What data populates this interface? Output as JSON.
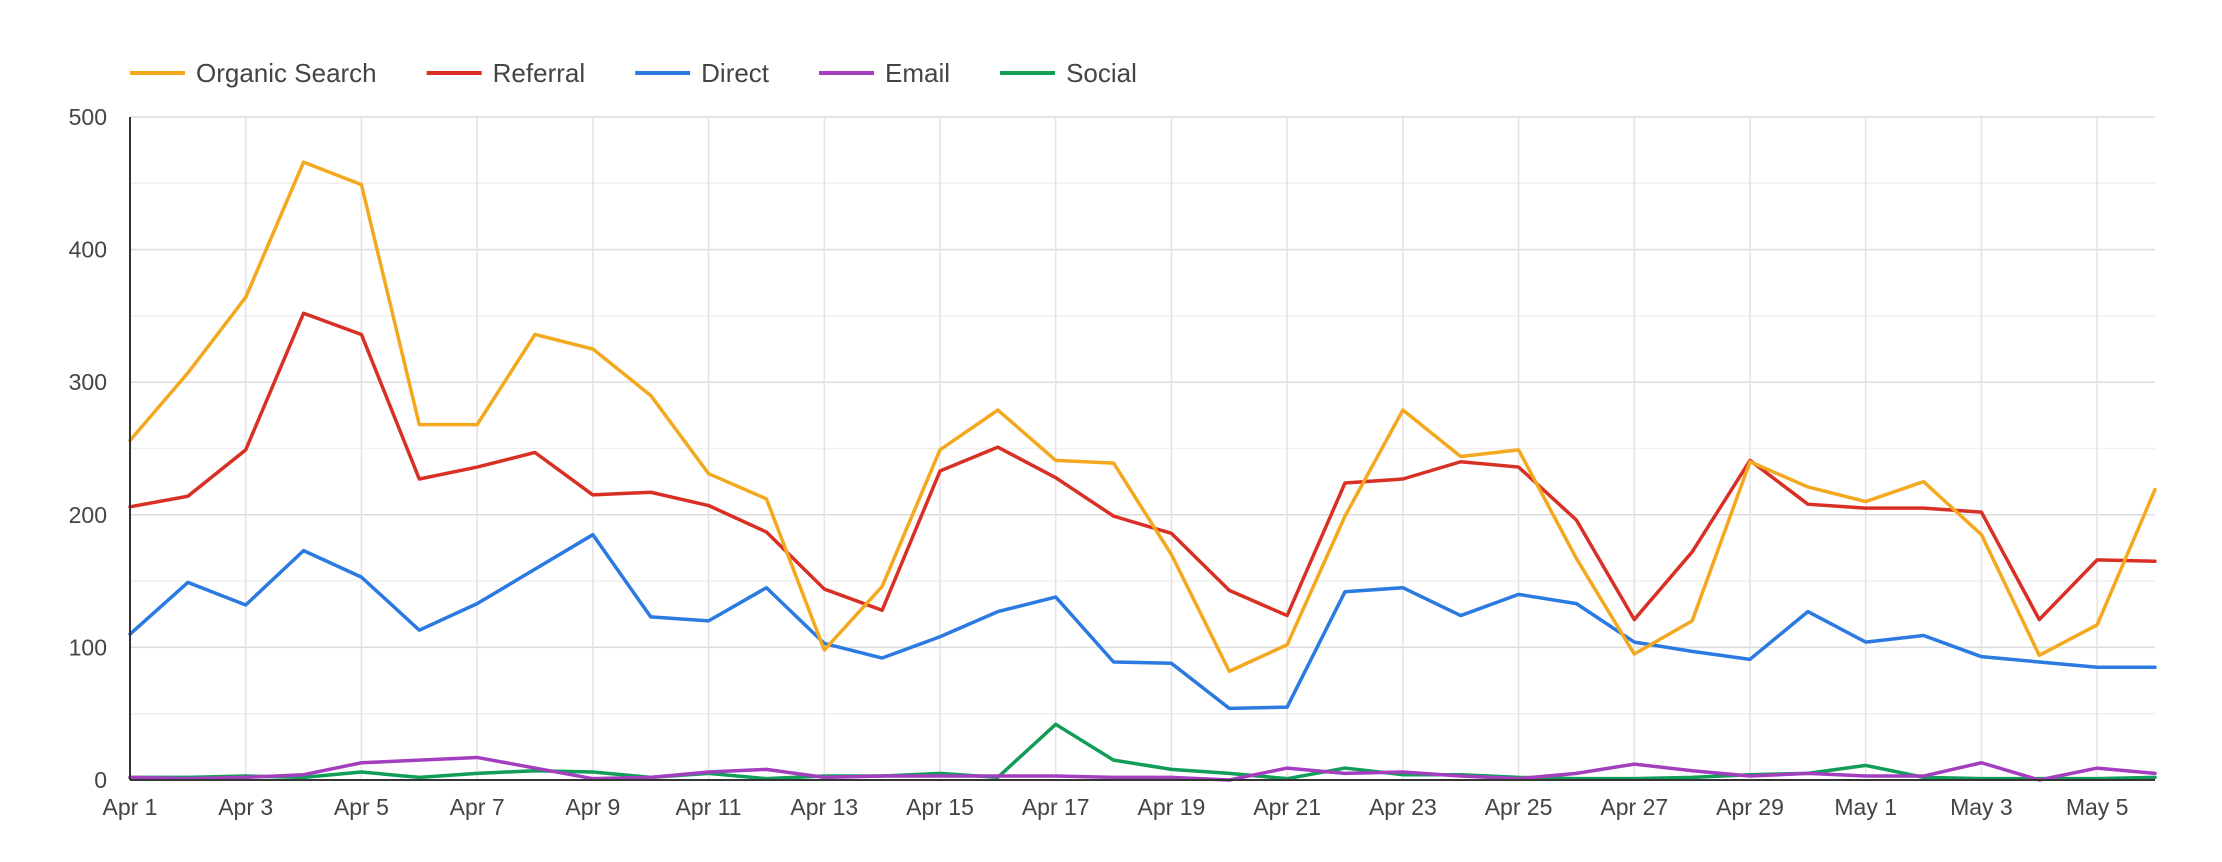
{
  "chart_data": {
    "type": "line",
    "title": "",
    "xlabel": "",
    "ylabel": "",
    "ylim": [
      0,
      500
    ],
    "yticks": [
      0,
      100,
      200,
      300,
      400,
      500
    ],
    "y_minor_step": 50,
    "grid": true,
    "legend_position": "top-left",
    "x": [
      "Apr 1",
      "Apr 2",
      "Apr 3",
      "Apr 4",
      "Apr 5",
      "Apr 6",
      "Apr 7",
      "Apr 8",
      "Apr 9",
      "Apr 10",
      "Apr 11",
      "Apr 12",
      "Apr 13",
      "Apr 14",
      "Apr 15",
      "Apr 16",
      "Apr 17",
      "Apr 18",
      "Apr 19",
      "Apr 20",
      "Apr 21",
      "Apr 22",
      "Apr 23",
      "Apr 24",
      "Apr 25",
      "Apr 26",
      "Apr 27",
      "Apr 28",
      "Apr 29",
      "Apr 30",
      "May 1",
      "May 2",
      "May 3",
      "May 4",
      "May 5",
      "May 6"
    ],
    "xtick_labels": [
      "Apr 1",
      "Apr 3",
      "Apr 5",
      "Apr 7",
      "Apr 9",
      "Apr 11",
      "Apr 13",
      "Apr 15",
      "Apr 17",
      "Apr 19",
      "Apr 21",
      "Apr 23",
      "Apr 25",
      "Apr 27",
      "Apr 29",
      "May 1",
      "May 3",
      "May 5"
    ],
    "series": [
      {
        "name": "Organic Search",
        "color": "#f4a81d",
        "values": [
          256,
          307,
          364,
          466,
          449,
          268,
          268,
          336,
          325,
          290,
          231,
          212,
          98,
          146,
          249,
          279,
          241,
          239,
          170,
          82,
          102,
          199,
          279,
          244,
          249,
          167,
          95,
          120,
          240,
          221,
          210,
          225,
          185,
          94,
          117,
          219
        ]
      },
      {
        "name": "Referral",
        "color": "#d93025",
        "values": [
          206,
          214,
          249,
          352,
          336,
          227,
          236,
          247,
          215,
          217,
          207,
          187,
          144,
          128,
          233,
          251,
          228,
          199,
          186,
          143,
          124,
          224,
          227,
          240,
          236,
          196,
          121,
          172,
          241,
          208,
          205,
          205,
          202,
          121,
          166,
          165
        ]
      },
      {
        "name": "Direct",
        "color": "#2a7ae2",
        "values": [
          110,
          149,
          132,
          173,
          153,
          113,
          133,
          159,
          185,
          123,
          120,
          145,
          103,
          92,
          108,
          127,
          138,
          89,
          88,
          54,
          55,
          142,
          145,
          124,
          140,
          133,
          104,
          97,
          91,
          127,
          104,
          109,
          93,
          89,
          85,
          85
        ]
      },
      {
        "name": "Email",
        "color": "#a33fbf",
        "values": [
          2,
          1,
          2,
          4,
          13,
          15,
          17,
          9,
          1,
          2,
          6,
          8,
          2,
          3,
          3,
          3,
          3,
          2,
          2,
          0,
          9,
          5,
          6,
          3,
          1,
          5,
          12,
          7,
          3,
          5,
          3,
          3,
          13,
          0,
          9,
          5
        ]
      },
      {
        "name": "Social",
        "color": "#0f9d58",
        "values": [
          2,
          2,
          3,
          2,
          6,
          2,
          5,
          7,
          6,
          2,
          5,
          1,
          3,
          3,
          5,
          2,
          42,
          15,
          8,
          5,
          1,
          9,
          4,
          4,
          2,
          1,
          1,
          2,
          4,
          5,
          11,
          2,
          1,
          1,
          1,
          2
        ]
      }
    ]
  }
}
